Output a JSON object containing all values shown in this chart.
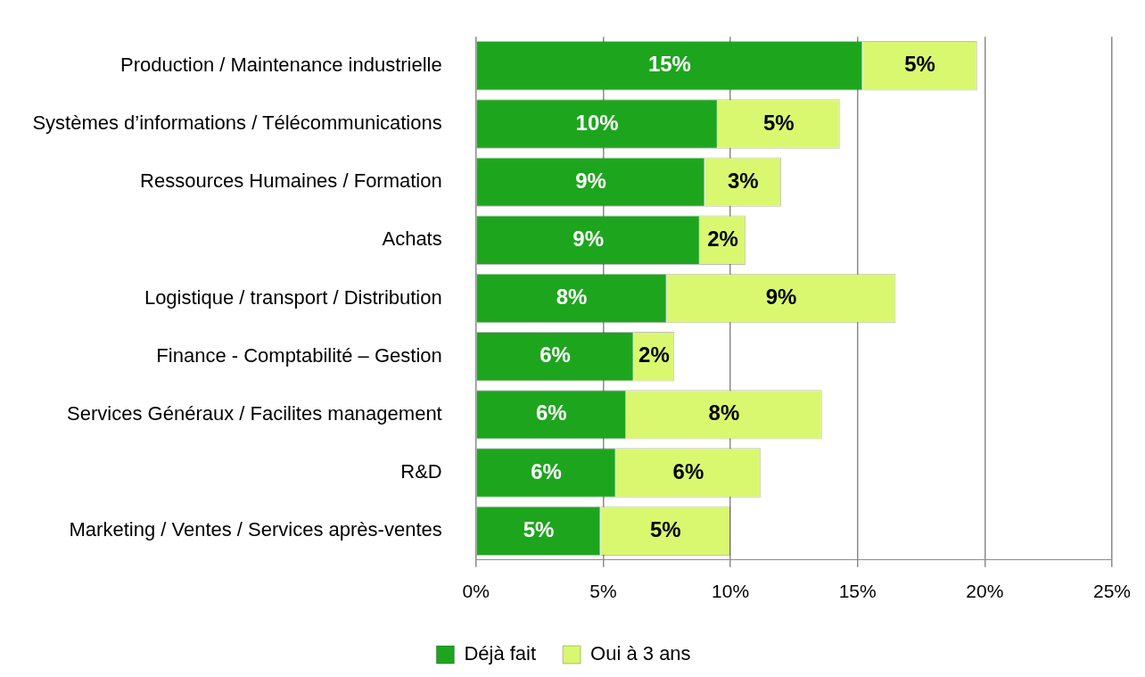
{
  "chart_data": {
    "type": "bar",
    "orientation": "horizontal",
    "stacked": true,
    "categories": [
      "Production / Maintenance industrielle",
      "Systèmes d’informations / Télécommunications",
      "Ressources Humaines / Formation",
      "Achats",
      "Logistique / transport / Distribution",
      "Finance - Comptabilité – Gestion",
      "Services Généraux / Facilites management",
      "R&D",
      "Marketing / Ventes / Services après-ventes"
    ],
    "series": [
      {
        "name": "Déjà fait",
        "color": "#1ea51e",
        "values": [
          15.2,
          9.5,
          9.0,
          8.8,
          7.5,
          6.2,
          5.9,
          5.5,
          4.9
        ],
        "value_labels": [
          "15%",
          "10%",
          "9%",
          "9%",
          "8%",
          "6%",
          "6%",
          "6%",
          "5%"
        ]
      },
      {
        "name": "Oui à 3 ans",
        "color": "#d9f870",
        "values": [
          4.5,
          4.8,
          3.0,
          1.8,
          9.0,
          1.6,
          7.7,
          5.7,
          5.1
        ],
        "value_labels": [
          "5%",
          "5%",
          "3%",
          "2%",
          "9%",
          "2%",
          "8%",
          "6%",
          "5%"
        ]
      }
    ],
    "xlim": [
      0,
      25
    ],
    "xticks": [
      {
        "value": 0,
        "label": "0%"
      },
      {
        "value": 5,
        "label": "5%"
      },
      {
        "value": 10,
        "label": "10%"
      },
      {
        "value": 15,
        "label": "15%"
      },
      {
        "value": 20,
        "label": "20%"
      },
      {
        "value": 25,
        "label": "25%"
      }
    ],
    "grid": "x",
    "legend": "bottom"
  }
}
